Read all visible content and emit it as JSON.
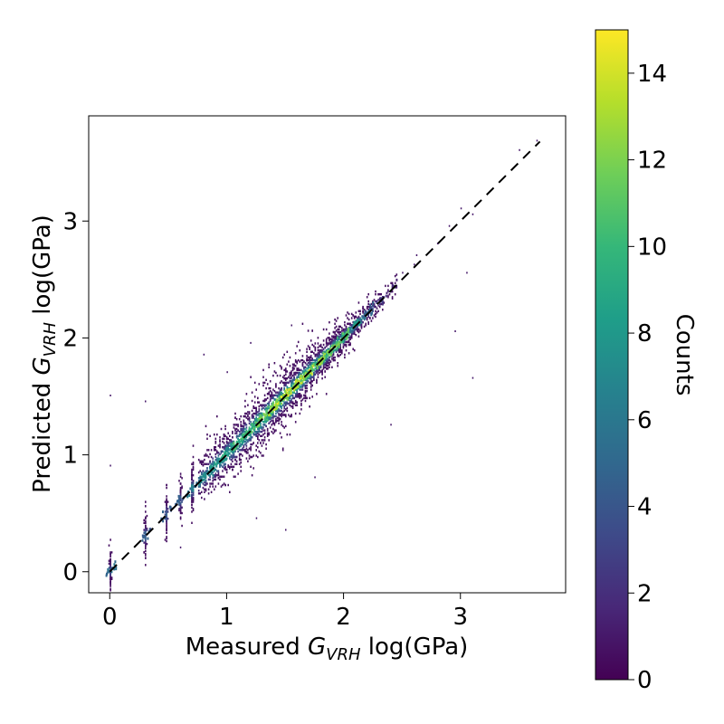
{
  "chart_data": {
    "type": "heatmap",
    "subtype": "2d-histogram",
    "xlabel": {
      "prefix": "Measured ",
      "symbol": "G",
      "subscript": "VRH",
      "suffix": " log(GPa)"
    },
    "ylabel": {
      "prefix": "Predicted ",
      "symbol": "G",
      "subscript": "VRH",
      "suffix": " log(GPa)"
    },
    "xlim": [
      -0.18,
      3.9
    ],
    "ylim": [
      -0.18,
      3.9
    ],
    "xticks": [
      0,
      1,
      2,
      3
    ],
    "yticks": [
      0,
      1,
      2,
      3
    ],
    "xtick_labels": [
      "0",
      "1",
      "2",
      "3"
    ],
    "ytick_labels": [
      "0",
      "1",
      "2",
      "3"
    ],
    "reference_line": {
      "style": "dashed",
      "color": "#000000",
      "from": [
        0,
        0
      ],
      "to": [
        3.68,
        3.68
      ]
    },
    "colorbar": {
      "label": "Counts",
      "min": 0,
      "max": 15,
      "ticks": [
        0,
        2,
        4,
        6,
        8,
        10,
        12,
        14
      ],
      "tick_labels": [
        "0",
        "2",
        "4",
        "6",
        "8",
        "10",
        "12",
        "14"
      ],
      "colormap": "viridis",
      "stops": [
        "#440154",
        "#482878",
        "#3e4a89",
        "#31688e",
        "#26828e",
        "#1f9e89",
        "#35b779",
        "#6ece58",
        "#b5de2b",
        "#fde725"
      ]
    },
    "density_profile": [
      {
        "x": 0.0,
        "count": 6,
        "spread": 0.1
      },
      {
        "x": 0.3,
        "count": 5,
        "spread": 0.12
      },
      {
        "x": 0.48,
        "count": 5,
        "spread": 0.12
      },
      {
        "x": 0.6,
        "count": 5,
        "spread": 0.12
      },
      {
        "x": 0.7,
        "count": 7,
        "spread": 0.13
      },
      {
        "x": 0.8,
        "count": 8,
        "spread": 0.13
      },
      {
        "x": 0.9,
        "count": 9,
        "spread": 0.14
      },
      {
        "x": 1.0,
        "count": 10,
        "spread": 0.14
      },
      {
        "x": 1.1,
        "count": 11,
        "spread": 0.15
      },
      {
        "x": 1.2,
        "count": 12,
        "spread": 0.15
      },
      {
        "x": 1.3,
        "count": 13,
        "spread": 0.15
      },
      {
        "x": 1.4,
        "count": 14,
        "spread": 0.14
      },
      {
        "x": 1.5,
        "count": 15,
        "spread": 0.14
      },
      {
        "x": 1.6,
        "count": 15,
        "spread": 0.13
      },
      {
        "x": 1.7,
        "count": 15,
        "spread": 0.12
      },
      {
        "x": 1.8,
        "count": 14,
        "spread": 0.1
      },
      {
        "x": 1.9,
        "count": 14,
        "spread": 0.09
      },
      {
        "x": 2.0,
        "count": 12,
        "spread": 0.08
      },
      {
        "x": 2.1,
        "count": 9,
        "spread": 0.07
      },
      {
        "x": 2.2,
        "count": 6,
        "spread": 0.06
      },
      {
        "x": 2.3,
        "count": 3,
        "spread": 0.06
      },
      {
        "x": 2.4,
        "count": 2,
        "spread": 0.06
      }
    ],
    "sparse_points": [
      [
        2.5,
        2.55
      ],
      [
        2.6,
        2.62
      ],
      [
        2.62,
        2.7
      ],
      [
        2.8,
        2.8
      ],
      [
        2.9,
        2.95
      ],
      [
        3.0,
        3.1
      ],
      [
        3.1,
        3.05
      ],
      [
        3.05,
        2.55
      ],
      [
        3.1,
        1.65
      ],
      [
        2.95,
        2.05
      ],
      [
        3.5,
        3.6
      ],
      [
        3.65,
        3.68
      ],
      [
        0.0,
        1.5
      ],
      [
        0.0,
        0.9
      ],
      [
        0.3,
        1.45
      ],
      [
        0.6,
        0.2
      ],
      [
        2.4,
        1.25
      ],
      [
        1.75,
        0.8
      ],
      [
        1.5,
        0.35
      ],
      [
        1.25,
        0.45
      ],
      [
        1.55,
        2.1
      ],
      [
        1.2,
        1.95
      ],
      [
        0.8,
        1.85
      ],
      [
        1.0,
        1.7
      ]
    ]
  }
}
